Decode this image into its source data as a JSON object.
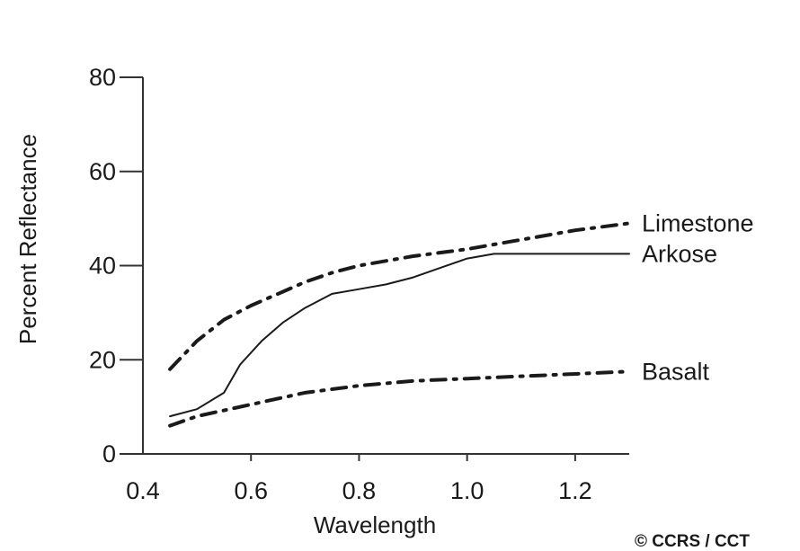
{
  "chart_data": {
    "type": "line",
    "xlabel": "Wavelength",
    "ylabel": "Percent Reflectance",
    "xlim": [
      0.4,
      1.3
    ],
    "ylim": [
      0,
      80
    ],
    "x_ticks": [
      "0.4",
      "0.6",
      "0.8",
      "1.0",
      "1.2"
    ],
    "y_ticks": [
      "0",
      "20",
      "40",
      "60",
      "80"
    ],
    "grid": false,
    "legend": "inline labels at right end of each line",
    "series": [
      {
        "name": "Limestone",
        "style": "dash-dot",
        "x": [
          0.45,
          0.5,
          0.55,
          0.6,
          0.65,
          0.7,
          0.75,
          0.8,
          0.9,
          1.0,
          1.1,
          1.2,
          1.3
        ],
        "values": [
          18,
          24,
          28.5,
          31.5,
          34,
          36.5,
          38.5,
          40,
          42,
          43.5,
          45.5,
          47.5,
          49
        ]
      },
      {
        "name": "Arkose",
        "style": "solid",
        "x": [
          0.45,
          0.5,
          0.55,
          0.58,
          0.62,
          0.66,
          0.7,
          0.75,
          0.8,
          0.85,
          0.9,
          0.95,
          1.0,
          1.05,
          1.1,
          1.2,
          1.3
        ],
        "values": [
          8,
          9.5,
          13,
          19,
          24,
          28,
          31,
          34,
          35,
          36,
          37.5,
          39.5,
          41.5,
          42.5,
          42.5,
          42.5,
          42.5
        ]
      },
      {
        "name": "Basalt",
        "style": "dash-dot",
        "x": [
          0.45,
          0.5,
          0.6,
          0.7,
          0.8,
          0.9,
          1.0,
          1.1,
          1.2,
          1.3
        ],
        "values": [
          6,
          8,
          10.5,
          13,
          14.5,
          15.5,
          16,
          16.5,
          17,
          17.5
        ]
      }
    ],
    "credit": "© CCRS / CCT"
  }
}
